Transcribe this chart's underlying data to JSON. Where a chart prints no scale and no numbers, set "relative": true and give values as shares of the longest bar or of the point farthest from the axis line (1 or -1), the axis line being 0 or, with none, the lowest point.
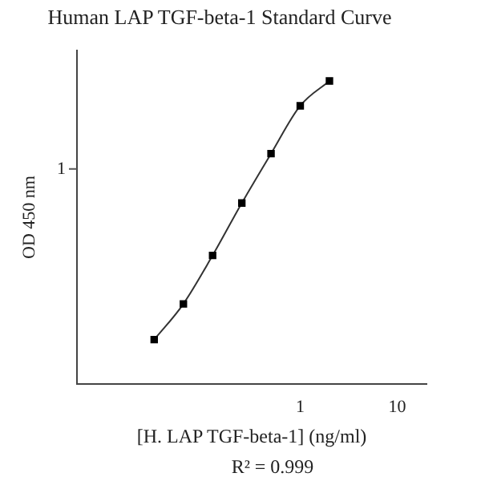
{
  "chart_data": {
    "type": "line",
    "title": "Human LAP TGF-beta-1 Standard Curve",
    "xlabel": "[H. LAP TGF-beta-1] (ng/ml)",
    "ylabel": "OD 450 nm",
    "x": [
      0.03125,
      0.0625,
      0.125,
      0.25,
      0.5,
      1,
      2
    ],
    "series": [
      {
        "color": "#000000",
        "values": [
          0.146,
          0.264,
          0.424,
          0.597,
          0.76,
          0.918,
          1
        ]
      }
    ],
    "relative": true,
    "log": "x",
    "xlim": [
      0.005,
      20
    ],
    "xticks": [
      1,
      10
    ],
    "marker": "square",
    "line_style": "solid",
    "grid": false,
    "legend": false,
    "annotations": [
      "1",
      "R² = 0.999"
    ]
  }
}
